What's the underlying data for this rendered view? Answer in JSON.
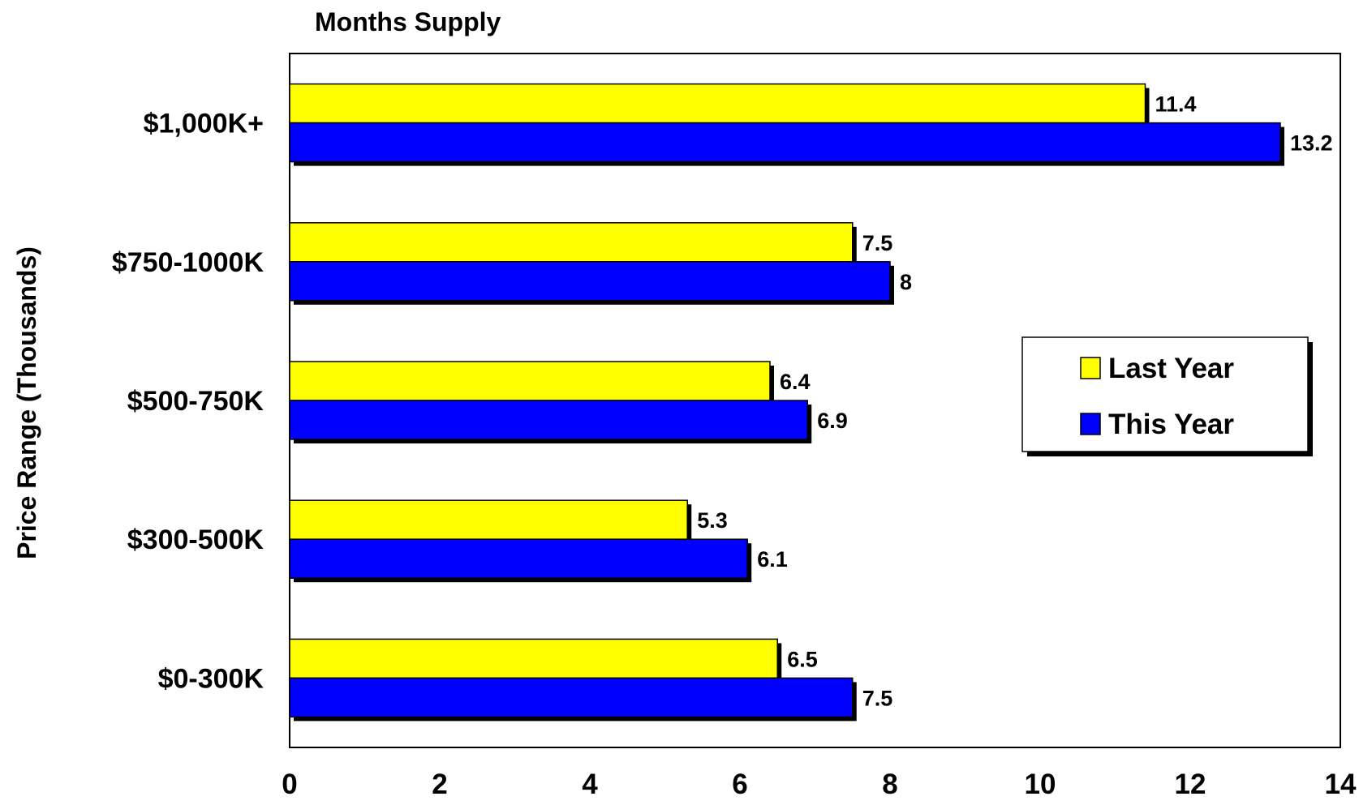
{
  "chart_data": {
    "type": "bar",
    "orientation": "horizontal",
    "title": "Months Supply",
    "xlabel": "",
    "ylabel": "Price Range (Thousands)",
    "xlim": [
      0,
      14
    ],
    "x_ticks": [
      0,
      2,
      4,
      6,
      8,
      10,
      12,
      14
    ],
    "grid": false,
    "legend_position": "right",
    "categories": [
      "$1,000K+",
      "$750-1000K",
      "$500-750K",
      "$300-500K",
      "$0-300K"
    ],
    "series": [
      {
        "name": "Last Year",
        "color": "#ffff00",
        "values": [
          11.4,
          7.5,
          6.4,
          5.3,
          6.5
        ],
        "labels": [
          "11.4",
          "7.5",
          "6.4",
          "5.3",
          "6.5"
        ]
      },
      {
        "name": "This Year",
        "color": "#0000ff",
        "values": [
          13.2,
          8,
          6.9,
          6.1,
          7.5
        ],
        "labels": [
          "13.2",
          "8",
          "6.9",
          "6.1",
          "7.5"
        ]
      }
    ]
  }
}
